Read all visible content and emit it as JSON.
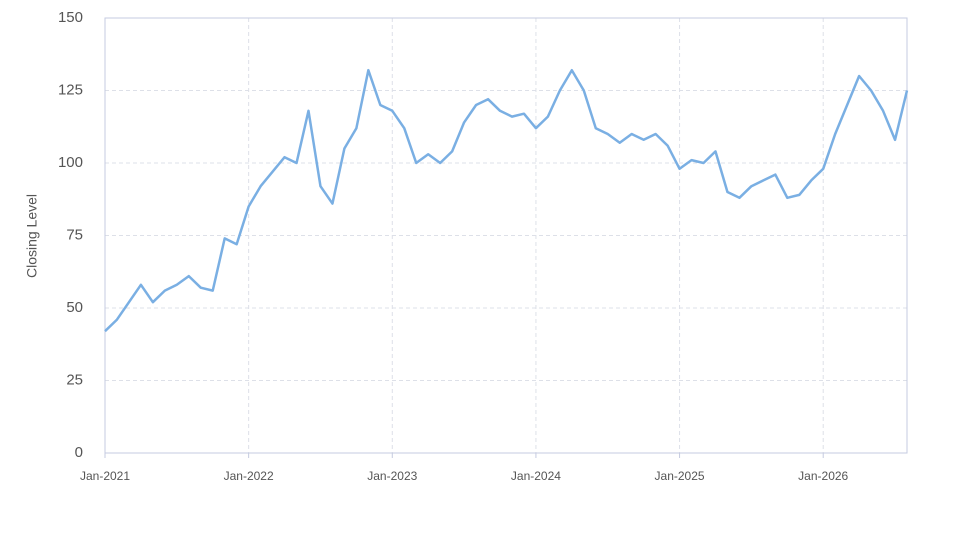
{
  "chart_data": {
    "type": "line",
    "ylabel": "Closing Level",
    "x": [
      "2021-01",
      "2021-02",
      "2021-03",
      "2021-04",
      "2021-05",
      "2021-06",
      "2021-07",
      "2021-08",
      "2021-09",
      "2021-10",
      "2021-11",
      "2021-12",
      "2022-01",
      "2022-02",
      "2022-03",
      "2022-04",
      "2022-05",
      "2022-06",
      "2022-07",
      "2022-08",
      "2022-09",
      "2022-10",
      "2022-11",
      "2022-12",
      "2023-01",
      "2023-02",
      "2023-03",
      "2023-04",
      "2023-05",
      "2023-06",
      "2023-07",
      "2023-08",
      "2023-09",
      "2023-10",
      "2023-11",
      "2023-12",
      "2024-01",
      "2024-02",
      "2024-03",
      "2024-04",
      "2024-05",
      "2024-06",
      "2024-07",
      "2024-08",
      "2024-09",
      "2024-10",
      "2024-11",
      "2024-12",
      "2025-01",
      "2025-02",
      "2025-03",
      "2025-04",
      "2025-05",
      "2025-06",
      "2025-07",
      "2025-08",
      "2025-09",
      "2025-10",
      "2025-11",
      "2025-12",
      "2026-01",
      "2026-02",
      "2026-03",
      "2026-04",
      "2026-05",
      "2026-06",
      "2026-07",
      "2026-08"
    ],
    "series": [
      {
        "name": "Closing Level",
        "color": "#7aafe3",
        "values": [
          42,
          46,
          52,
          58,
          52,
          56,
          58,
          61,
          57,
          56,
          74,
          72,
          85,
          92,
          97,
          102,
          100,
          118,
          92,
          86,
          105,
          112,
          132,
          120,
          118,
          112,
          100,
          103,
          100,
          104,
          114,
          120,
          122,
          118,
          116,
          117,
          112,
          116,
          125,
          132,
          125,
          112,
          110,
          107,
          110,
          108,
          110,
          106,
          98,
          101,
          100,
          104,
          90,
          88,
          92,
          94,
          96,
          88,
          89,
          94,
          98,
          110,
          120,
          130,
          125,
          118,
          108,
          125
        ]
      }
    ],
    "xlim": [
      "2021-01",
      "2026-08"
    ],
    "xticks": [
      {
        "value": "2021-01",
        "label": "Jan-2021"
      },
      {
        "value": "2022-01",
        "label": "Jan-2022"
      },
      {
        "value": "2023-01",
        "label": "Jan-2023"
      },
      {
        "value": "2024-01",
        "label": "Jan-2024"
      },
      {
        "value": "2025-01",
        "label": "Jan-2025"
      },
      {
        "value": "2026-01",
        "label": "Jan-2026"
      }
    ],
    "ylim": [
      0,
      150
    ],
    "yticks": [
      0,
      25,
      50,
      75,
      100,
      125,
      150
    ],
    "grid": true
  }
}
